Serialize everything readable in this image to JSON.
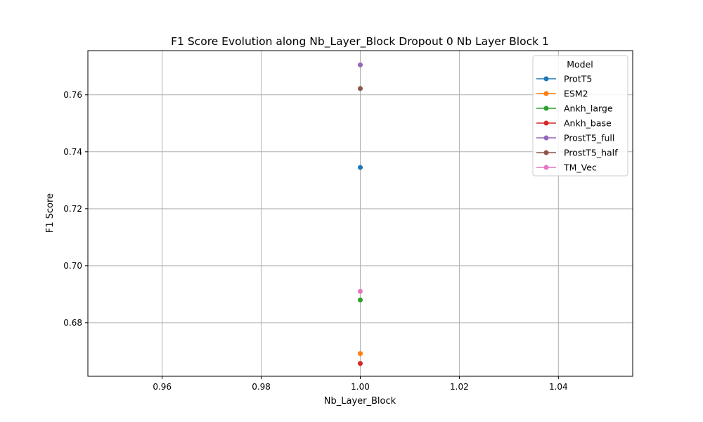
{
  "chart_data": {
    "type": "line",
    "title": "F1 Score Evolution along Nb_Layer_Block Dropout 0 Nb Layer Block 1",
    "xlabel": "Nb_Layer_Block",
    "ylabel": "F1 Score",
    "xlim": [
      0.945,
      1.055
    ],
    "ylim": [
      0.6612,
      0.7755
    ],
    "xticks": [
      0.96,
      0.98,
      1.0,
      1.02,
      1.04
    ],
    "xtick_labels": [
      "0.96",
      "0.98",
      "1.00",
      "1.02",
      "1.04"
    ],
    "yticks": [
      0.68,
      0.7,
      0.72,
      0.74,
      0.76
    ],
    "ytick_labels": [
      "0.68",
      "0.70",
      "0.72",
      "0.74",
      "0.76"
    ],
    "grid": true,
    "legend_title": "Model",
    "legend_position": "top-right",
    "series": [
      {
        "name": "ProtT5",
        "color": "#1f77b4",
        "x": [
          1.0
        ],
        "y": [
          0.7345
        ]
      },
      {
        "name": "ESM2",
        "color": "#ff7f0e",
        "x": [
          1.0
        ],
        "y": [
          0.6692
        ]
      },
      {
        "name": "Ankh_large",
        "color": "#2ca02c",
        "x": [
          1.0
        ],
        "y": [
          0.688
        ]
      },
      {
        "name": "Ankh_base",
        "color": "#d62728",
        "x": [
          1.0
        ],
        "y": [
          0.6657
        ]
      },
      {
        "name": "ProstT5_full",
        "color": "#9467bd",
        "x": [
          1.0
        ],
        "y": [
          0.7705
        ]
      },
      {
        "name": "ProstT5_half",
        "color": "#8c564b",
        "x": [
          1.0
        ],
        "y": [
          0.7622
        ]
      },
      {
        "name": "TM_Vec",
        "color": "#e377c2",
        "x": [
          1.0
        ],
        "y": [
          0.691
        ]
      }
    ]
  }
}
